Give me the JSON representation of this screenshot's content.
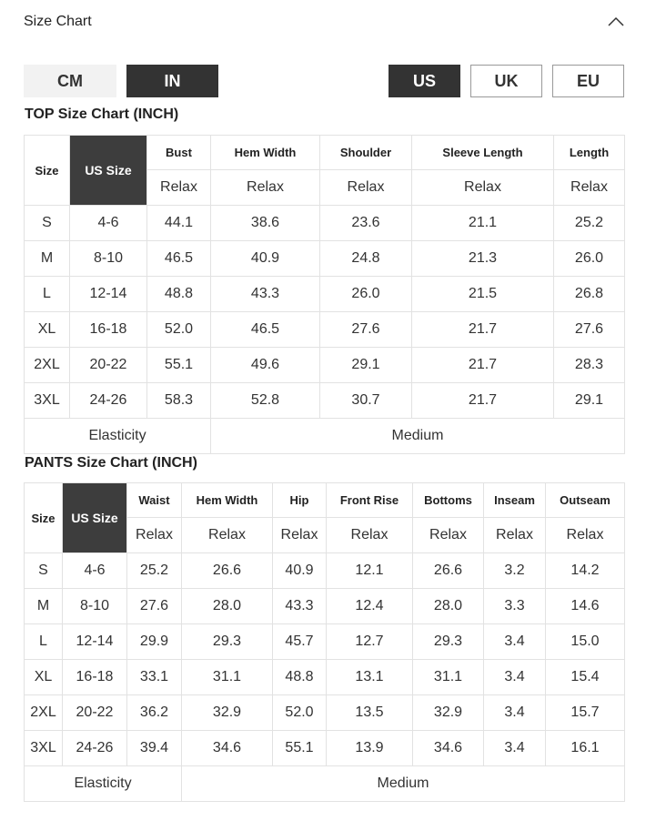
{
  "header": {
    "title": "Size Chart"
  },
  "units": [
    {
      "label": "CM",
      "active": false
    },
    {
      "label": "IN",
      "active": true
    }
  ],
  "regions": [
    {
      "label": "US",
      "active": true
    },
    {
      "label": "UK",
      "active": false
    },
    {
      "label": "EU",
      "active": false
    }
  ],
  "top": {
    "title": "TOP Size Chart (INCH)",
    "size_label": "Size",
    "us_label": "US Size",
    "measures": [
      "Bust",
      "Hem Width",
      "Shoulder",
      "Sleeve Length",
      "Length"
    ],
    "fit": "Relax",
    "rows": [
      [
        "S",
        "4-6",
        "44.1",
        "38.6",
        "23.6",
        "21.1",
        "25.2"
      ],
      [
        "M",
        "8-10",
        "46.5",
        "40.9",
        "24.8",
        "21.3",
        "26.0"
      ],
      [
        "L",
        "12-14",
        "48.8",
        "43.3",
        "26.0",
        "21.5",
        "26.8"
      ],
      [
        "XL",
        "16-18",
        "52.0",
        "46.5",
        "27.6",
        "21.7",
        "27.6"
      ],
      [
        "2XL",
        "20-22",
        "55.1",
        "49.6",
        "29.1",
        "21.7",
        "28.3"
      ],
      [
        "3XL",
        "24-26",
        "58.3",
        "52.8",
        "30.7",
        "21.7",
        "29.1"
      ]
    ],
    "elasticity_label": "Elasticity",
    "elasticity_value": "Medium"
  },
  "pants": {
    "title": "PANTS Size Chart (INCH)",
    "size_label": "Size",
    "us_label": "US Size",
    "measures": [
      "Waist",
      "Hem Width",
      "Hip",
      "Front Rise",
      "Bottoms",
      "Inseam",
      "Outseam"
    ],
    "fit": "Relax",
    "rows": [
      [
        "S",
        "4-6",
        "25.2",
        "26.6",
        "40.9",
        "12.1",
        "26.6",
        "3.2",
        "14.2"
      ],
      [
        "M",
        "8-10",
        "27.6",
        "28.0",
        "43.3",
        "12.4",
        "28.0",
        "3.3",
        "14.6"
      ],
      [
        "L",
        "12-14",
        "29.9",
        "29.3",
        "45.7",
        "12.7",
        "29.3",
        "3.4",
        "15.0"
      ],
      [
        "XL",
        "16-18",
        "33.1",
        "31.1",
        "48.8",
        "13.1",
        "31.1",
        "3.4",
        "15.4"
      ],
      [
        "2XL",
        "20-22",
        "36.2",
        "32.9",
        "52.0",
        "13.5",
        "32.9",
        "3.4",
        "15.7"
      ],
      [
        "3XL",
        "24-26",
        "39.4",
        "34.6",
        "55.1",
        "13.9",
        "34.6",
        "3.4",
        "16.1"
      ]
    ],
    "elasticity_label": "Elasticity",
    "elasticity_value": "Medium"
  }
}
